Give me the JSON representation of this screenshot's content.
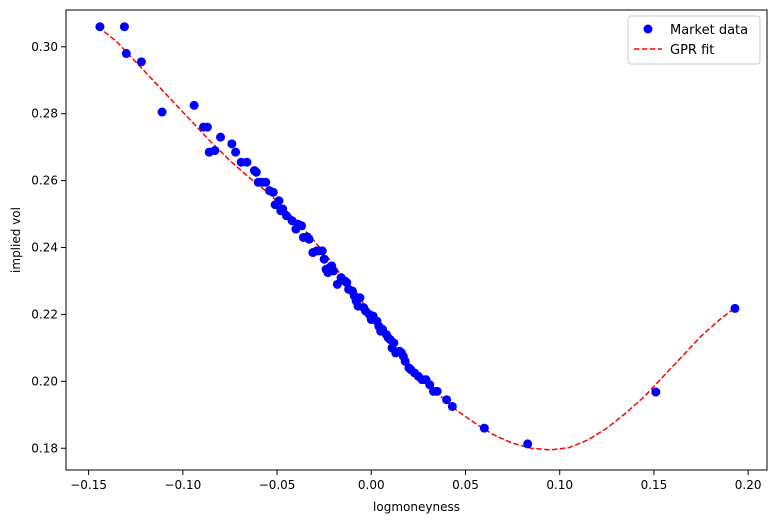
{
  "chart_data": {
    "type": "scatter",
    "xlabel": "logmoneyness",
    "ylabel": "implied vol",
    "xlim": [
      -0.162,
      0.21
    ],
    "ylim": [
      0.1735,
      0.311
    ],
    "xticks": [
      -0.15,
      -0.1,
      -0.05,
      0.0,
      0.05,
      0.1,
      0.15,
      0.2
    ],
    "xtick_labels": [
      "−0.15",
      "−0.10",
      "−0.05",
      "0.00",
      "0.05",
      "0.10",
      "0.15",
      "0.20"
    ],
    "yticks": [
      0.18,
      0.2,
      0.22,
      0.24,
      0.26,
      0.28,
      0.3
    ],
    "ytick_labels": [
      "0.18",
      "0.20",
      "0.22",
      "0.24",
      "0.26",
      "0.28",
      "0.30"
    ],
    "grid": false,
    "legend_position": "top-right",
    "colors": {
      "market": "#0000ff",
      "fit": "#ff0000"
    },
    "series": [
      {
        "name": "Market data",
        "style": "markers",
        "points": [
          [
            -0.144,
            0.306
          ],
          [
            -0.131,
            0.306
          ],
          [
            -0.13,
            0.298
          ],
          [
            -0.122,
            0.2955
          ],
          [
            -0.111,
            0.2805
          ],
          [
            -0.094,
            0.2825
          ],
          [
            -0.089,
            0.276
          ],
          [
            -0.087,
            0.276
          ],
          [
            -0.086,
            0.2685
          ],
          [
            -0.083,
            0.269
          ],
          [
            -0.08,
            0.273
          ],
          [
            -0.074,
            0.271
          ],
          [
            -0.072,
            0.2685
          ],
          [
            -0.069,
            0.2655
          ],
          [
            -0.066,
            0.2655
          ],
          [
            -0.062,
            0.263
          ],
          [
            -0.061,
            0.2625
          ],
          [
            -0.06,
            0.2595
          ],
          [
            -0.058,
            0.2595
          ],
          [
            -0.056,
            0.2595
          ],
          [
            -0.054,
            0.257
          ],
          [
            -0.052,
            0.2565
          ],
          [
            -0.051,
            0.2528
          ],
          [
            -0.049,
            0.254
          ],
          [
            -0.048,
            0.251
          ],
          [
            -0.047,
            0.2515
          ],
          [
            -0.045,
            0.2495
          ],
          [
            -0.042,
            0.248
          ],
          [
            -0.04,
            0.2455
          ],
          [
            -0.039,
            0.247
          ],
          [
            -0.037,
            0.2465
          ],
          [
            -0.036,
            0.243
          ],
          [
            -0.034,
            0.2432
          ],
          [
            -0.033,
            0.2425
          ],
          [
            -0.031,
            0.2385
          ],
          [
            -0.029,
            0.239
          ],
          [
            -0.028,
            0.239
          ],
          [
            -0.026,
            0.239
          ],
          [
            -0.025,
            0.2365
          ],
          [
            -0.024,
            0.2335
          ],
          [
            -0.023,
            0.2325
          ],
          [
            -0.022,
            0.234
          ],
          [
            -0.021,
            0.2345
          ],
          [
            -0.02,
            0.233
          ],
          [
            -0.018,
            0.229
          ],
          [
            -0.016,
            0.231
          ],
          [
            -0.014,
            0.23
          ],
          [
            -0.013,
            0.2295
          ],
          [
            -0.012,
            0.2275
          ],
          [
            -0.01,
            0.227
          ],
          [
            -0.009,
            0.2255
          ],
          [
            -0.008,
            0.224
          ],
          [
            -0.007,
            0.2225
          ],
          [
            -0.006,
            0.225
          ],
          [
            -0.004,
            0.222
          ],
          [
            -0.003,
            0.221
          ],
          [
            -0.001,
            0.22
          ],
          [
            0.0,
            0.2185
          ],
          [
            0.001,
            0.2195
          ],
          [
            0.003,
            0.218
          ],
          [
            0.004,
            0.2165
          ],
          [
            0.005,
            0.215
          ],
          [
            0.006,
            0.2155
          ],
          [
            0.008,
            0.214
          ],
          [
            0.009,
            0.213
          ],
          [
            0.01,
            0.2125
          ],
          [
            0.011,
            0.21
          ],
          [
            0.012,
            0.2115
          ],
          [
            0.013,
            0.2085
          ],
          [
            0.015,
            0.209
          ],
          [
            0.016,
            0.2085
          ],
          [
            0.017,
            0.2075
          ],
          [
            0.018,
            0.206
          ],
          [
            0.02,
            0.204
          ],
          [
            0.021,
            0.2035
          ],
          [
            0.023,
            0.2025
          ],
          [
            0.025,
            0.2015
          ],
          [
            0.027,
            0.2005
          ],
          [
            0.029,
            0.2005
          ],
          [
            0.031,
            0.199
          ],
          [
            0.033,
            0.197
          ],
          [
            0.035,
            0.197
          ],
          [
            0.04,
            0.1945
          ],
          [
            0.043,
            0.1925
          ],
          [
            0.06,
            0.186
          ],
          [
            0.083,
            0.1813
          ],
          [
            0.151,
            0.1968
          ],
          [
            0.193,
            0.2218
          ]
        ]
      },
      {
        "name": "GPR fit",
        "style": "dashed-line",
        "points": [
          [
            -0.145,
            0.306
          ],
          [
            -0.135,
            0.3015
          ],
          [
            -0.125,
            0.2955
          ],
          [
            -0.115,
            0.2895
          ],
          [
            -0.105,
            0.2835
          ],
          [
            -0.095,
            0.2775
          ],
          [
            -0.085,
            0.2715
          ],
          [
            -0.075,
            0.266
          ],
          [
            -0.065,
            0.261
          ],
          [
            -0.055,
            0.2565
          ],
          [
            -0.045,
            0.251
          ],
          [
            -0.035,
            0.245
          ],
          [
            -0.025,
            0.2385
          ],
          [
            -0.015,
            0.231
          ],
          [
            -0.005,
            0.224
          ],
          [
            0.005,
            0.216
          ],
          [
            0.015,
            0.2085
          ],
          [
            0.025,
            0.202
          ],
          [
            0.035,
            0.1965
          ],
          [
            0.045,
            0.1915
          ],
          [
            0.055,
            0.1875
          ],
          [
            0.065,
            0.184
          ],
          [
            0.075,
            0.1815
          ],
          [
            0.085,
            0.18
          ],
          [
            0.095,
            0.1795
          ],
          [
            0.105,
            0.1802
          ],
          [
            0.115,
            0.1825
          ],
          [
            0.125,
            0.186
          ],
          [
            0.135,
            0.1905
          ],
          [
            0.145,
            0.1955
          ],
          [
            0.155,
            0.2015
          ],
          [
            0.165,
            0.2075
          ],
          [
            0.175,
            0.2135
          ],
          [
            0.185,
            0.2185
          ],
          [
            0.193,
            0.222
          ]
        ]
      }
    ]
  }
}
